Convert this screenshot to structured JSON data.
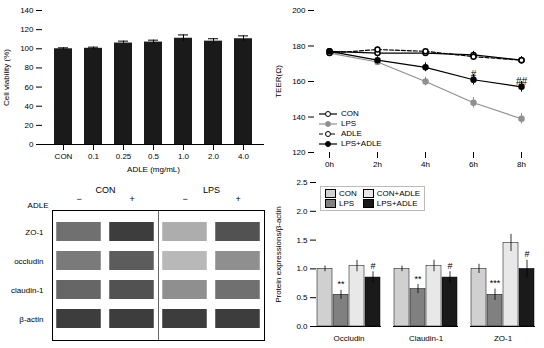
{
  "chart_data": [
    {
      "type": "bar",
      "categories": [
        "CON",
        "0.1",
        "0.25",
        "0.5",
        "1.0",
        "2.0",
        "4.0"
      ],
      "values": [
        100,
        100.5,
        106,
        107,
        111,
        108,
        110.5
      ],
      "errors": [
        1.0,
        1.2,
        2.0,
        2.0,
        3.5,
        2.5,
        3.0
      ],
      "color": "#1a1a1a",
      "ylabel": "Cell viability (%)",
      "xlabel": "ADLE (mg/mL)",
      "ylim": [
        0,
        140
      ],
      "yticks": [
        0,
        20,
        40,
        60,
        80,
        100,
        120,
        140
      ]
    },
    {
      "type": "line",
      "categories": [
        "0h",
        "2h",
        "4h",
        "6h",
        "8h"
      ],
      "series": [
        {
          "name": "CON",
          "color": "#000000",
          "marker": "circle-open",
          "line_style": "solid",
          "values": [
            177,
            176,
            176,
            175,
            172
          ],
          "errors": [
            1.0,
            1.5,
            1.5,
            2.0,
            2.0
          ]
        },
        {
          "name": "LPS",
          "color": "#909090",
          "marker": "circle",
          "line_style": "solid",
          "values": [
            176,
            171,
            160,
            148,
            139
          ],
          "errors": [
            1.0,
            2.0,
            2.5,
            3.0,
            3.0
          ]
        },
        {
          "name": "ADLE",
          "color": "#000000",
          "marker": "circle-open",
          "line_style": "dashed",
          "values": [
            176,
            178,
            177,
            174,
            172
          ],
          "errors": [
            1.0,
            1.5,
            1.5,
            2.0,
            2.0
          ]
        },
        {
          "name": "LPS+ADLE",
          "color": "#000000",
          "marker": "circle",
          "line_style": "solid",
          "values": [
            177,
            172,
            168,
            161,
            157
          ],
          "errors": [
            1.0,
            2.0,
            2.5,
            3.0,
            3.0
          ]
        }
      ],
      "ylabel": "TEER(Ω)",
      "ylim": [
        120,
        200
      ],
      "yticks": [
        120,
        140,
        160,
        180,
        200
      ],
      "legend": "lower left",
      "annotations": [
        {
          "text": "#",
          "x": "6h",
          "y": 162
        },
        {
          "text": "##",
          "x": "8h",
          "y": 158
        }
      ]
    },
    {
      "type": "heatmap",
      "rows": [
        "ZO-1",
        "occludin",
        "claudin-1",
        "β-actin"
      ],
      "columns": [
        "−",
        "+",
        "−",
        "+"
      ],
      "column_groups": [
        "CON",
        "LPS"
      ],
      "column_label": "ADLE",
      "cells": [
        [
          0.7,
          0.95,
          0.4,
          0.85
        ],
        [
          0.65,
          0.8,
          0.35,
          0.55
        ],
        [
          0.75,
          0.85,
          0.55,
          0.7
        ],
        [
          0.95,
          0.95,
          0.95,
          0.95
        ]
      ]
    },
    {
      "type": "bar",
      "categories": [
        "Occludin",
        "Claudin-1",
        "ZO-1"
      ],
      "series": [
        {
          "name": "CON",
          "color": "#d0d0d0",
          "values": [
            1.0,
            1.0,
            1.0
          ],
          "errors": [
            0.05,
            0.05,
            0.08
          ]
        },
        {
          "name": "LPS",
          "color": "#808080",
          "values": [
            0.55,
            0.65,
            0.55
          ],
          "errors": [
            0.08,
            0.08,
            0.1
          ]
        },
        {
          "name": "CON+ADLE",
          "color": "#e8e8e8",
          "values": [
            1.05,
            1.05,
            1.45
          ],
          "errors": [
            0.1,
            0.1,
            0.15
          ]
        },
        {
          "name": "LPS+ADLE",
          "color": "#1a1a1a",
          "values": [
            0.85,
            0.85,
            1.0
          ],
          "errors": [
            0.1,
            0.1,
            0.15
          ]
        }
      ],
      "ylabel": "Protein expressions/β-actin",
      "ylim": [
        0,
        2.5
      ],
      "yticks": [
        {
          "value": 0.0,
          "label": "0.0"
        },
        0.5,
        {
          "value": 1.0,
          "label": "1.0"
        },
        1.5,
        {
          "value": 2.0,
          "label": "2.0"
        },
        2.5
      ],
      "legend": "upper left",
      "annotations": [
        {
          "text": "**",
          "category": "Occludin",
          "series": "LPS",
          "y": 0.68
        },
        {
          "text": "#",
          "category": "Occludin",
          "series": "LPS+ADLE",
          "y": 1.0
        },
        {
          "text": "**",
          "category": "Claudin-1",
          "series": "LPS",
          "y": 0.78
        },
        {
          "text": "#",
          "category": "Claudin-1",
          "series": "LPS+ADLE",
          "y": 1.0
        },
        {
          "text": "***",
          "category": "ZO-1",
          "series": "LPS",
          "y": 0.7
        },
        {
          "text": "#",
          "category": "ZO-1",
          "series": "LPS+ADLE",
          "y": 1.2
        }
      ]
    }
  ]
}
